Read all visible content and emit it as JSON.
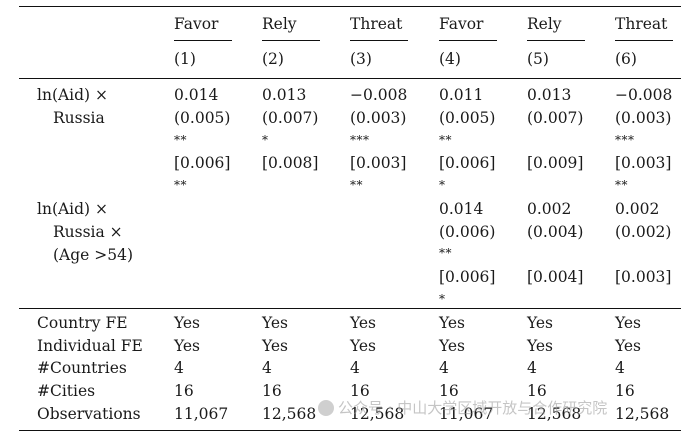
{
  "header": {
    "dvs": [
      "Favor",
      "Rely",
      "Threat",
      "Favor",
      "Rely",
      "Threat"
    ],
    "nums": [
      "(1)",
      "(2)",
      "(3)",
      "(4)",
      "(5)",
      "(6)"
    ]
  },
  "rows": {
    "aid_russia": {
      "label1": "ln(Aid) ×",
      "label2": "Russia",
      "coef": [
        "0.014",
        "0.013",
        "−0.008",
        "0.011",
        "0.013",
        "−0.008"
      ],
      "se": [
        "(0.005)",
        "(0.007)",
        "(0.003)",
        "(0.005)",
        "(0.007)",
        "(0.003)"
      ],
      "se_stars": [
        "**",
        "*",
        "***",
        "**",
        "",
        "***"
      ],
      "boot": [
        "[0.006]",
        "[0.008]",
        "[0.003]",
        "[0.006]",
        "[0.009]",
        "[0.003]"
      ],
      "boot_stars": [
        "**",
        "",
        "**",
        "*",
        "",
        "**"
      ]
    },
    "aid_russia_age": {
      "label1": "ln(Aid) ×",
      "label2": "Russia ×",
      "label3": "(Age >54)",
      "coef": [
        "",
        "",
        "",
        "0.014",
        "0.002",
        "0.002"
      ],
      "se": [
        "",
        "",
        "",
        "(0.006)",
        "(0.004)",
        "(0.002)"
      ],
      "se_stars": [
        "",
        "",
        "",
        "**",
        "",
        ""
      ],
      "boot": [
        "",
        "",
        "",
        "[0.006]",
        "[0.004]",
        "[0.003]"
      ],
      "boot_stars": [
        "",
        "",
        "",
        "*",
        "",
        ""
      ]
    }
  },
  "footer": [
    {
      "label": "Country FE",
      "values": [
        "Yes",
        "Yes",
        "Yes",
        "Yes",
        "Yes",
        "Yes"
      ]
    },
    {
      "label": "Individual FE",
      "values": [
        "Yes",
        "Yes",
        "Yes",
        "Yes",
        "Yes",
        "Yes"
      ]
    },
    {
      "label": "#Countries",
      "values": [
        "4",
        "4",
        "4",
        "4",
        "4",
        "4"
      ]
    },
    {
      "label": "#Cities",
      "values": [
        "16",
        "16",
        "16",
        "16",
        "16",
        "16"
      ]
    },
    {
      "label": "Observations",
      "values": [
        "11,067",
        "12,568",
        "12,568",
        "11,067",
        "12,568",
        "12,568"
      ]
    }
  ],
  "watermark": "公众号 · 中山大学区域开放与合作研究院"
}
